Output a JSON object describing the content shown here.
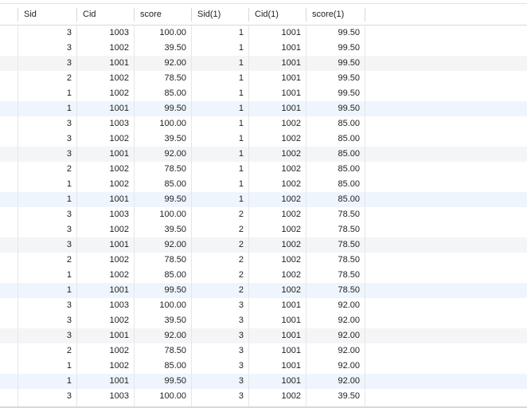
{
  "columns": [
    "Sid",
    "Cid",
    "score",
    "Sid(1)",
    "Cid(1)",
    "score(1)"
  ],
  "rows": [
    [
      "3",
      "1003",
      "100.00",
      "1",
      "1001",
      "99.50"
    ],
    [
      "3",
      "1002",
      "39.50",
      "1",
      "1001",
      "99.50"
    ],
    [
      "3",
      "1001",
      "92.00",
      "1",
      "1001",
      "99.50"
    ],
    [
      "2",
      "1002",
      "78.50",
      "1",
      "1001",
      "99.50"
    ],
    [
      "1",
      "1002",
      "85.00",
      "1",
      "1001",
      "99.50"
    ],
    [
      "1",
      "1001",
      "99.50",
      "1",
      "1001",
      "99.50"
    ],
    [
      "3",
      "1003",
      "100.00",
      "1",
      "1002",
      "85.00"
    ],
    [
      "3",
      "1002",
      "39.50",
      "1",
      "1002",
      "85.00"
    ],
    [
      "3",
      "1001",
      "92.00",
      "1",
      "1002",
      "85.00"
    ],
    [
      "2",
      "1002",
      "78.50",
      "1",
      "1002",
      "85.00"
    ],
    [
      "1",
      "1002",
      "85.00",
      "1",
      "1002",
      "85.00"
    ],
    [
      "1",
      "1001",
      "99.50",
      "1",
      "1002",
      "85.00"
    ],
    [
      "3",
      "1003",
      "100.00",
      "2",
      "1002",
      "78.50"
    ],
    [
      "3",
      "1002",
      "39.50",
      "2",
      "1002",
      "78.50"
    ],
    [
      "3",
      "1001",
      "92.00",
      "2",
      "1002",
      "78.50"
    ],
    [
      "2",
      "1002",
      "78.50",
      "2",
      "1002",
      "78.50"
    ],
    [
      "1",
      "1002",
      "85.00",
      "2",
      "1002",
      "78.50"
    ],
    [
      "1",
      "1001",
      "99.50",
      "2",
      "1002",
      "78.50"
    ],
    [
      "3",
      "1003",
      "100.00",
      "3",
      "1001",
      "92.00"
    ],
    [
      "3",
      "1002",
      "39.50",
      "3",
      "1001",
      "92.00"
    ],
    [
      "3",
      "1001",
      "92.00",
      "3",
      "1001",
      "92.00"
    ],
    [
      "2",
      "1002",
      "78.50",
      "3",
      "1001",
      "92.00"
    ],
    [
      "1",
      "1002",
      "85.00",
      "3",
      "1001",
      "92.00"
    ],
    [
      "1",
      "1001",
      "99.50",
      "3",
      "1001",
      "92.00"
    ],
    [
      "3",
      "1003",
      "100.00",
      "3",
      "1002",
      "39.50"
    ]
  ],
  "colors": {
    "stripe": "#f4f5f7",
    "highlight": "#eef5fd",
    "grid_line": "#e6e6e6"
  }
}
